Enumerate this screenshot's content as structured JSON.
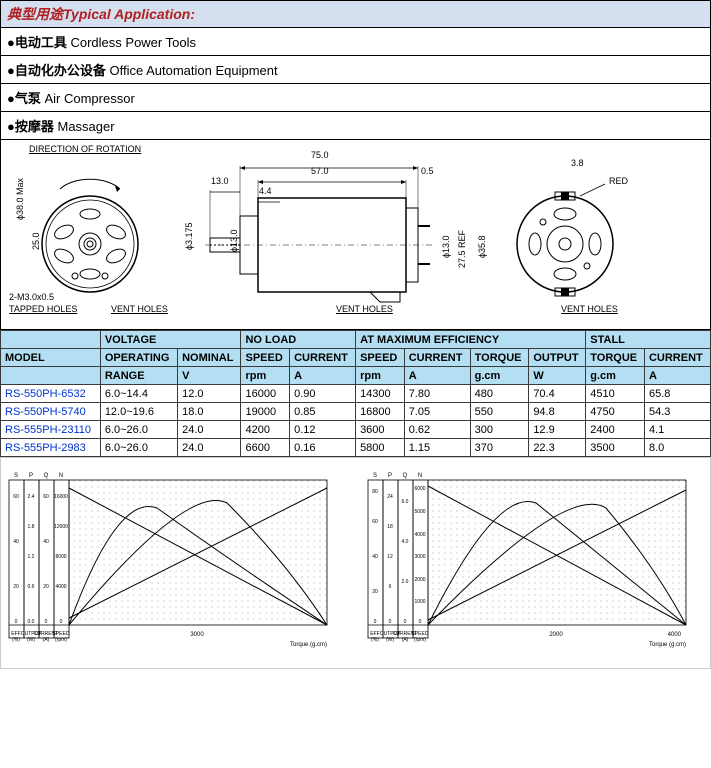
{
  "header": {
    "title_cn": "典型用途",
    "title_en": "Typical Application:"
  },
  "applications": [
    {
      "cn": "电动工具",
      "en": "Cordless Power Tools"
    },
    {
      "cn": "自动化办公设备",
      "en": "Office Automation Equipment"
    },
    {
      "cn": "气泵",
      "en": "Air Compressor"
    },
    {
      "cn": "按摩器",
      "en": "Massager"
    }
  ],
  "diagram": {
    "labels": {
      "rotation": "DIRECTION OF ROTATION",
      "tapped": "TAPPED HOLES",
      "vent": "VENT HOLES",
      "red": "RED",
      "holes": "2-M3.0x0.5"
    },
    "dims": {
      "d38": "ϕ38.0 Max",
      "d25": "25.0",
      "d3175": "ϕ3.175",
      "l75": "75.0",
      "l57": "57.0",
      "l13": "13.0",
      "l44": "4.4",
      "l05": "0.5",
      "d13": "ϕ13.0",
      "l275": "27.5 REF",
      "d358": "ϕ35.8",
      "l38": "3.8",
      "phi13": "ϕ13.0"
    }
  },
  "table": {
    "group_headers": [
      "",
      "VOLTAGE",
      "NO LOAD",
      "AT MAXIMUM EFFICIENCY",
      "STALL"
    ],
    "sub_headers_r1": [
      "MODEL",
      "OPERATING",
      "NOMINAL",
      "SPEED",
      "CURRENT",
      "SPEED",
      "CURRENT",
      "TORQUE",
      "OUTPUT",
      "TORQUE",
      "CURRENT"
    ],
    "sub_headers_r2": [
      "",
      "RANGE",
      "V",
      "rpm",
      "A",
      "rpm",
      "A",
      "g.cm",
      "W",
      "g.cm",
      "A"
    ],
    "rows": [
      [
        "RS-550PH-6532",
        "6.0~14.4",
        "12.0",
        "16000",
        "0.90",
        "14300",
        "7.80",
        "480",
        "70.4",
        "4510",
        "65.8"
      ],
      [
        "RS-550PH-5740",
        "12.0~19.6",
        "18.0",
        "19000",
        "0.85",
        "16800",
        "7.05",
        "550",
        "94.8",
        "4750",
        "54.3"
      ],
      [
        "RS-555PH-23110",
        "6.0~26.0",
        "24.0",
        "4200",
        "0.12",
        "3600",
        "0.62",
        "300",
        "12.9",
        "2400",
        "4.1"
      ],
      [
        "RS-555PH-2983",
        "6.0~26.0",
        "24.0",
        "6600",
        "0.16",
        "5800",
        "1.15",
        "370",
        "22.3",
        "3500",
        "8.0"
      ]
    ]
  },
  "charts": {
    "left": {
      "y_labels_top": [
        "S",
        "P",
        "Q",
        "N"
      ],
      "y_ticks": {
        "eff": [
          60,
          40,
          20,
          0
        ],
        "out": [
          2.4,
          1.8,
          1.2,
          0.6,
          0.0
        ],
        "cur": [
          60,
          40,
          20,
          0
        ],
        "speed": [
          16000,
          12000,
          8000,
          4000,
          0
        ]
      },
      "x_max": "3000",
      "x_label": "Torque (g.cm)",
      "bottom_labels": [
        "EFF (%)",
        "OUTPUT (W)",
        "CURRENT (A)",
        "SPEED (rpm)"
      ]
    },
    "right": {
      "y_labels_top": [
        "S",
        "P",
        "Q",
        "N"
      ],
      "y_ticks": {
        "eff": [
          80,
          60,
          40,
          20,
          0
        ],
        "out": [
          24,
          18,
          12,
          6,
          0
        ],
        "cur": [
          6.0,
          4.0,
          2.0,
          0
        ],
        "speed": [
          6000,
          5000,
          4000,
          3000,
          2000,
          1000,
          0
        ]
      },
      "x_mid": "2000",
      "x_max": "4000",
      "x_label": "Torque (g.cm)",
      "bottom_labels": [
        "EFF (%)",
        "OUTPUT (W)",
        "CURRENT (A)",
        "SPEED (rpm)"
      ]
    },
    "colors": {
      "line": "#000000",
      "grid": "#bfbfbf",
      "bg": "#ffffff",
      "dotgrid": "#888888"
    }
  }
}
